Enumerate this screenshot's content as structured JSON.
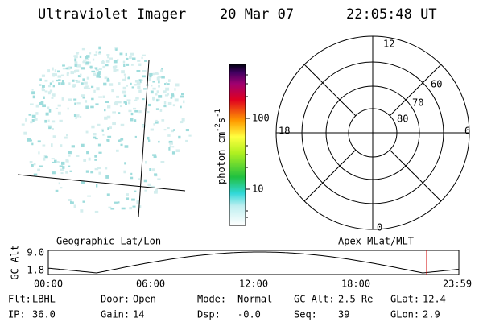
{
  "header": {
    "instrument": "Ultraviolet Imager",
    "date": "20 Mar 07",
    "time": "22:05:48 UT"
  },
  "colorbar": {
    "unit": {
      "base": "photon cm",
      "exp1": "-2",
      "mid": "s",
      "exp2": "-1"
    },
    "ticks": [
      "100",
      "10"
    ]
  },
  "polar": {
    "mlt": [
      "12",
      "6",
      "0",
      "18"
    ],
    "mlat": [
      "60",
      "70",
      "80"
    ]
  },
  "timeline": {
    "left_title": "Geographic Lat/Lon",
    "right_title": "Apex MLat/MLT",
    "y_label": "GC Alt",
    "y_ticks": [
      "9.0",
      "1.8"
    ],
    "x_ticks": [
      "00:00",
      "06:00",
      "12:00",
      "18:00",
      "23:59"
    ]
  },
  "status": {
    "rows": [
      [
        {
          "label": "Flt:",
          "value": "LBHL"
        },
        {
          "label": "Door:",
          "value": "Open"
        },
        {
          "label": "Mode:",
          "value": "Normal"
        },
        {
          "label": "GC Alt:",
          "value": "2.5 Re"
        },
        {
          "label": "GLat:",
          "value": "12.4"
        }
      ],
      [
        {
          "label": "IP:",
          "value": "36.0"
        },
        {
          "label": "Gain:",
          "value": "14"
        },
        {
          "label": "Dsp:",
          "value": "-0.0"
        },
        {
          "label": "Seq:",
          "value": "39"
        },
        {
          "label": "GLon:",
          "value": "2.9"
        }
      ]
    ]
  }
}
